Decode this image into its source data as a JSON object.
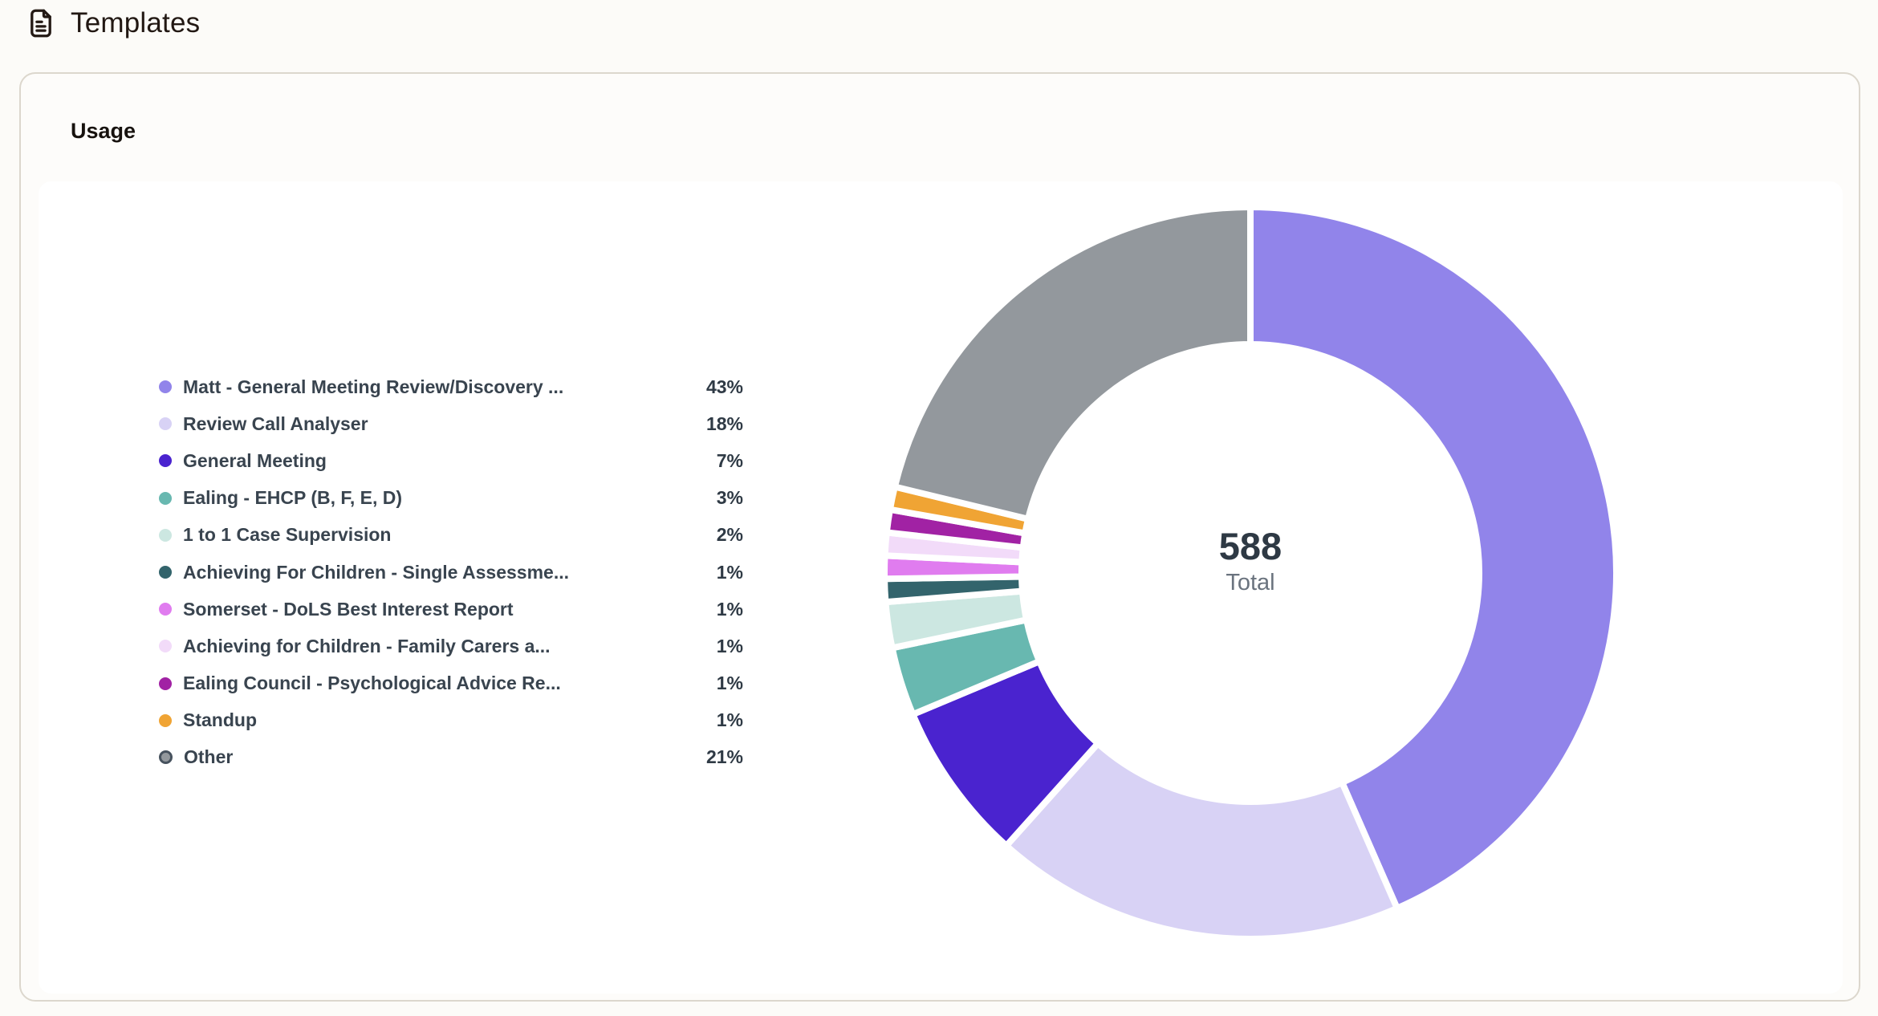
{
  "page": {
    "title": "Templates"
  },
  "card": {
    "title": "Usage"
  },
  "chart_data": {
    "type": "donut",
    "title": "Usage",
    "total": "588",
    "total_label": "Total",
    "legend_position": "left",
    "start_angle": "top",
    "direction": "clockwise",
    "items": [
      {
        "label": "Matt - General Meeting Review/Discovery ...",
        "pct": "43%",
        "value": 43,
        "color": "#9184EA"
      },
      {
        "label": "Review Call Analyser",
        "pct": "18%",
        "value": 18,
        "color": "#D8D2F5"
      },
      {
        "label": "General Meeting",
        "pct": "7%",
        "value": 7,
        "color": "#4A23CF"
      },
      {
        "label": "Ealing - EHCP (B, F, E, D)",
        "pct": "3%",
        "value": 3,
        "color": "#68B8B0"
      },
      {
        "label": "1 to 1 Case Supervision",
        "pct": "2%",
        "value": 2,
        "color": "#CCE7E1"
      },
      {
        "label": "Achieving For Children - Single Assessme...",
        "pct": "1%",
        "value": 1,
        "color": "#33646C"
      },
      {
        "label": "Somerset - DoLS Best Interest Report",
        "pct": "1%",
        "value": 1,
        "color": "#E07CEF"
      },
      {
        "label": "Achieving for Children - Family Carers a...",
        "pct": "1%",
        "value": 1,
        "color": "#F2DBF9"
      },
      {
        "label": "Ealing Council - Psychological Advice Re...",
        "pct": "1%",
        "value": 1,
        "color": "#A122A4"
      },
      {
        "label": "Standup",
        "pct": "1%",
        "value": 1,
        "color": "#F0A434"
      },
      {
        "label": "Other",
        "pct": "21%",
        "value": 21,
        "color": "#93989D",
        "ring_color": "#47525E"
      }
    ]
  },
  "colors": {
    "card_background": "#FDFCFA",
    "card_border": "#DCD7CD",
    "panel_background": "#FFFFFF",
    "slice_gap": "#FFFFFF",
    "center_value_text": "#2E3944",
    "center_label_text": "#6A737E",
    "legend_text": "#39444F"
  }
}
